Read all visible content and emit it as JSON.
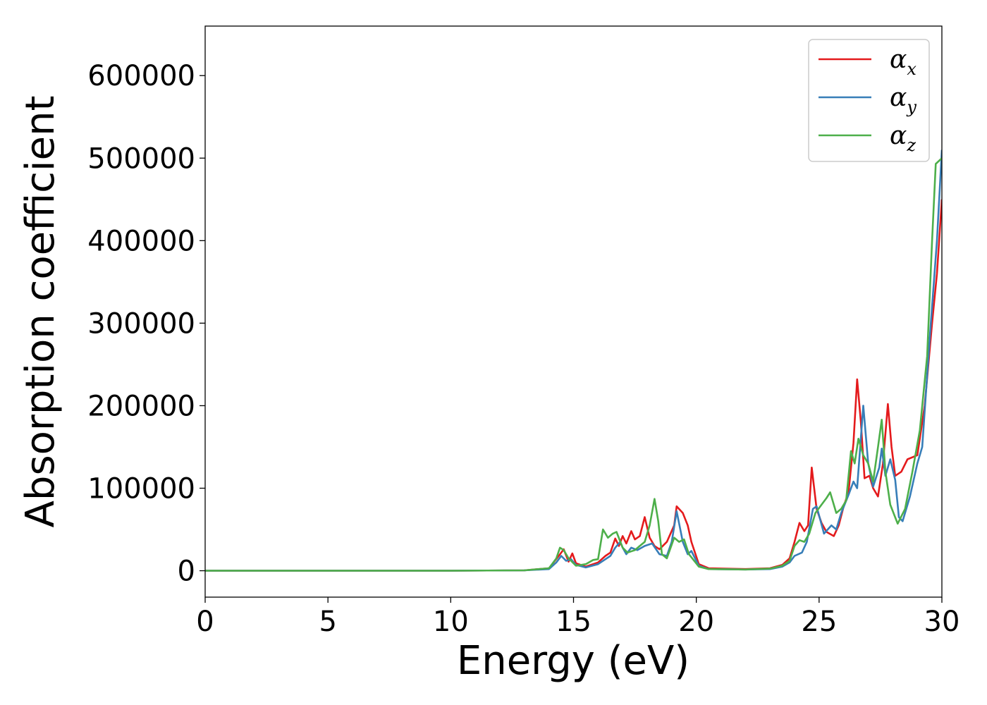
{
  "chart_data": {
    "type": "line",
    "title": "",
    "xlabel": "Energy (eV)",
    "ylabel": "Absorption coefficient",
    "xlim": [
      0,
      30
    ],
    "ylim": [
      -32000,
      660000
    ],
    "x_ticks": [
      0,
      5,
      10,
      15,
      20,
      25,
      30
    ],
    "y_ticks": [
      0,
      100000,
      200000,
      300000,
      400000,
      500000,
      600000
    ],
    "grid": false,
    "legend_position": "top-right",
    "series": [
      {
        "name": "αx",
        "legend_main": "α",
        "legend_sub": "x",
        "color": "#e41a1c",
        "points": [
          [
            0,
            0
          ],
          [
            10,
            0
          ],
          [
            13,
            500
          ],
          [
            14,
            3000
          ],
          [
            14.4,
            18000
          ],
          [
            14.6,
            26000
          ],
          [
            14.8,
            11000
          ],
          [
            14.95,
            21000
          ],
          [
            15.1,
            9000
          ],
          [
            15.5,
            5000
          ],
          [
            16,
            10000
          ],
          [
            16.3,
            18000
          ],
          [
            16.5,
            22000
          ],
          [
            16.7,
            39000
          ],
          [
            16.85,
            30000
          ],
          [
            17,
            42000
          ],
          [
            17.15,
            33000
          ],
          [
            17.35,
            48000
          ],
          [
            17.5,
            38000
          ],
          [
            17.7,
            42000
          ],
          [
            17.9,
            65000
          ],
          [
            18.1,
            40000
          ],
          [
            18.3,
            30000
          ],
          [
            18.5,
            26000
          ],
          [
            18.8,
            35000
          ],
          [
            19.1,
            55000
          ],
          [
            19.2,
            78000
          ],
          [
            19.45,
            70000
          ],
          [
            19.65,
            55000
          ],
          [
            19.8,
            35000
          ],
          [
            20.1,
            8000
          ],
          [
            20.5,
            3000
          ],
          [
            22,
            2000
          ],
          [
            23,
            3000
          ],
          [
            23.5,
            7000
          ],
          [
            23.8,
            15000
          ],
          [
            24,
            35000
          ],
          [
            24.2,
            58000
          ],
          [
            24.4,
            48000
          ],
          [
            24.55,
            55000
          ],
          [
            24.7,
            125000
          ],
          [
            24.9,
            75000
          ],
          [
            25.1,
            58000
          ],
          [
            25.3,
            47000
          ],
          [
            25.6,
            42000
          ],
          [
            25.8,
            55000
          ],
          [
            26,
            78000
          ],
          [
            26.2,
            95000
          ],
          [
            26.4,
            155000
          ],
          [
            26.55,
            232000
          ],
          [
            26.7,
            180000
          ],
          [
            26.85,
            112000
          ],
          [
            27.05,
            115000
          ],
          [
            27.2,
            100000
          ],
          [
            27.4,
            90000
          ],
          [
            27.6,
            130000
          ],
          [
            27.8,
            202000
          ],
          [
            27.95,
            150000
          ],
          [
            28.1,
            115000
          ],
          [
            28.35,
            120000
          ],
          [
            28.6,
            135000
          ],
          [
            29,
            140000
          ],
          [
            29.3,
            200000
          ],
          [
            29.6,
            300000
          ],
          [
            29.8,
            360000
          ],
          [
            30,
            450000
          ]
        ]
      },
      {
        "name": "αy",
        "legend_main": "α",
        "legend_sub": "y",
        "color": "#377eb8",
        "points": [
          [
            0,
            0
          ],
          [
            10,
            0
          ],
          [
            13,
            500
          ],
          [
            14,
            2000
          ],
          [
            14.3,
            10000
          ],
          [
            14.5,
            18000
          ],
          [
            14.7,
            12000
          ],
          [
            14.9,
            14000
          ],
          [
            15.1,
            7000
          ],
          [
            15.5,
            4000
          ],
          [
            16,
            8000
          ],
          [
            16.3,
            14000
          ],
          [
            16.5,
            18000
          ],
          [
            16.7,
            28000
          ],
          [
            16.9,
            35000
          ],
          [
            17,
            28000
          ],
          [
            17.15,
            20000
          ],
          [
            17.35,
            28000
          ],
          [
            17.6,
            25000
          ],
          [
            17.9,
            30000
          ],
          [
            18.2,
            33000
          ],
          [
            18.5,
            20000
          ],
          [
            18.8,
            18000
          ],
          [
            19,
            35000
          ],
          [
            19.2,
            72000
          ],
          [
            19.45,
            35000
          ],
          [
            19.65,
            20000
          ],
          [
            19.8,
            24000
          ],
          [
            20.1,
            6000
          ],
          [
            20.5,
            2000
          ],
          [
            22,
            1500
          ],
          [
            23,
            2000
          ],
          [
            23.5,
            5000
          ],
          [
            23.8,
            10000
          ],
          [
            24,
            18000
          ],
          [
            24.3,
            22000
          ],
          [
            24.5,
            35000
          ],
          [
            24.75,
            75000
          ],
          [
            24.9,
            78000
          ],
          [
            25.2,
            45000
          ],
          [
            25.5,
            55000
          ],
          [
            25.7,
            50000
          ],
          [
            25.9,
            70000
          ],
          [
            26.2,
            92000
          ],
          [
            26.4,
            108000
          ],
          [
            26.55,
            100000
          ],
          [
            26.8,
            200000
          ],
          [
            27,
            130000
          ],
          [
            27.2,
            102000
          ],
          [
            27.45,
            125000
          ],
          [
            27.55,
            148000
          ],
          [
            27.7,
            115000
          ],
          [
            27.9,
            135000
          ],
          [
            28.1,
            110000
          ],
          [
            28.25,
            65000
          ],
          [
            28.4,
            60000
          ],
          [
            28.7,
            90000
          ],
          [
            29,
            130000
          ],
          [
            29.2,
            150000
          ],
          [
            29.5,
            280000
          ],
          [
            29.8,
            400000
          ],
          [
            30,
            510000
          ]
        ]
      },
      {
        "name": "αz",
        "legend_main": "α",
        "legend_sub": "z",
        "color": "#4daf4a",
        "points": [
          [
            0,
            0
          ],
          [
            10,
            0
          ],
          [
            13,
            500
          ],
          [
            14,
            3000
          ],
          [
            14.3,
            15000
          ],
          [
            14.45,
            28000
          ],
          [
            14.6,
            25000
          ],
          [
            14.8,
            15000
          ],
          [
            15.1,
            6000
          ],
          [
            15.5,
            8000
          ],
          [
            15.8,
            13000
          ],
          [
            16,
            14000
          ],
          [
            16.2,
            50000
          ],
          [
            16.4,
            40000
          ],
          [
            16.6,
            45000
          ],
          [
            16.75,
            47000
          ],
          [
            17,
            28000
          ],
          [
            17.2,
            22000
          ],
          [
            17.5,
            25000
          ],
          [
            17.7,
            30000
          ],
          [
            17.9,
            35000
          ],
          [
            18.1,
            55000
          ],
          [
            18.3,
            87000
          ],
          [
            18.45,
            60000
          ],
          [
            18.6,
            20000
          ],
          [
            18.8,
            15000
          ],
          [
            19.1,
            40000
          ],
          [
            19.3,
            35000
          ],
          [
            19.5,
            38000
          ],
          [
            19.7,
            20000
          ],
          [
            20.1,
            5000
          ],
          [
            20.5,
            2000
          ],
          [
            22,
            1500
          ],
          [
            23,
            2500
          ],
          [
            23.5,
            6000
          ],
          [
            23.8,
            12000
          ],
          [
            24,
            30000
          ],
          [
            24.2,
            37000
          ],
          [
            24.4,
            35000
          ],
          [
            24.6,
            45000
          ],
          [
            24.85,
            70000
          ],
          [
            25.1,
            80000
          ],
          [
            25.3,
            88000
          ],
          [
            25.45,
            95000
          ],
          [
            25.7,
            70000
          ],
          [
            25.9,
            75000
          ],
          [
            26.1,
            85000
          ],
          [
            26.3,
            145000
          ],
          [
            26.45,
            130000
          ],
          [
            26.6,
            160000
          ],
          [
            26.8,
            140000
          ],
          [
            27,
            130000
          ],
          [
            27.2,
            108000
          ],
          [
            27.4,
            150000
          ],
          [
            27.55,
            183000
          ],
          [
            27.7,
            120000
          ],
          [
            27.9,
            80000
          ],
          [
            28.2,
            57000
          ],
          [
            28.5,
            75000
          ],
          [
            28.8,
            120000
          ],
          [
            29.1,
            170000
          ],
          [
            29.4,
            260000
          ],
          [
            29.6,
            400000
          ],
          [
            29.75,
            493000
          ],
          [
            30,
            500000
          ]
        ]
      }
    ]
  }
}
